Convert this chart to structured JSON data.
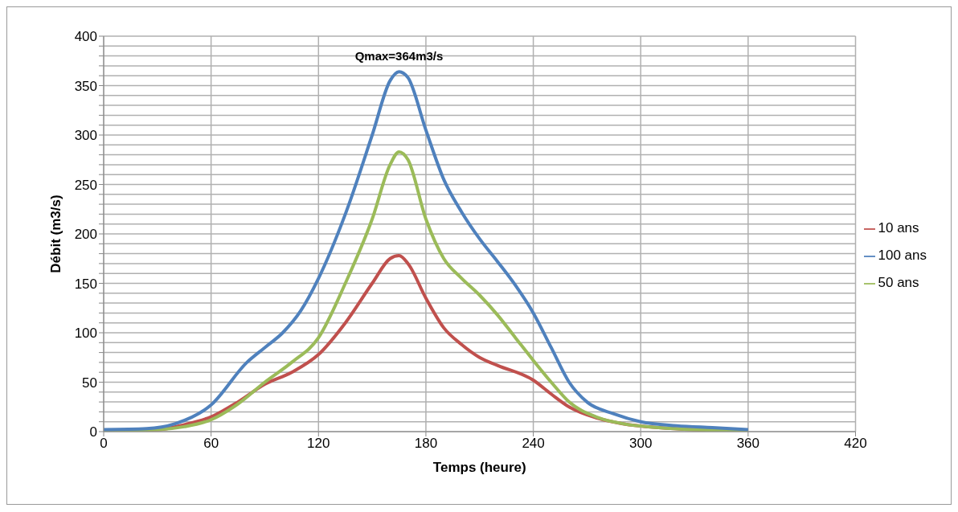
{
  "chart_data": {
    "type": "line",
    "xlabel": "Temps (heure)",
    "ylabel": "Débit (m3/s)",
    "xlim": [
      0,
      420
    ],
    "xticks": [
      0,
      60,
      120,
      180,
      240,
      300,
      360,
      420
    ],
    "ylim": [
      0,
      400
    ],
    "yticks": [
      0,
      {
        "value": 10,
        "label": null
      },
      {
        "value": 20,
        "label": null
      },
      {
        "value": 30,
        "label": null
      },
      {
        "value": 40,
        "label": null
      },
      50,
      {
        "value": 60,
        "label": null
      },
      {
        "value": 70,
        "label": null
      },
      {
        "value": 80,
        "label": null
      },
      {
        "value": 90,
        "label": null
      },
      100,
      {
        "value": 110,
        "label": null
      },
      {
        "value": 120,
        "label": null
      },
      {
        "value": 130,
        "label": null
      },
      {
        "value": 140,
        "label": null
      },
      150,
      {
        "value": 160,
        "label": null
      },
      {
        "value": 170,
        "label": null
      },
      {
        "value": 180,
        "label": null
      },
      {
        "value": 190,
        "label": null
      },
      200,
      {
        "value": 210,
        "label": null
      },
      {
        "value": 220,
        "label": null
      },
      {
        "value": 230,
        "label": null
      },
      {
        "value": 240,
        "label": null
      },
      250,
      {
        "value": 260,
        "label": null
      },
      {
        "value": 270,
        "label": null
      },
      {
        "value": 280,
        "label": null
      },
      {
        "value": 290,
        "label": null
      },
      300,
      {
        "value": 310,
        "label": null
      },
      {
        "value": 320,
        "label": null
      },
      {
        "value": 330,
        "label": null
      },
      {
        "value": 340,
        "label": null
      },
      350,
      {
        "value": 360,
        "label": null
      },
      {
        "value": 370,
        "label": null
      },
      {
        "value": 380,
        "label": null
      },
      {
        "value": 390,
        "label": null
      },
      400
    ],
    "grid": true,
    "legend": "right",
    "marker": "none",
    "line_style": "solid",
    "annotations": [
      {
        "text": "Qmax=364m3/s",
        "x": 165,
        "y": 364
      }
    ],
    "series": [
      {
        "name": "10 ans",
        "color": "#c0504d",
        "x": [
          0,
          30,
          45,
          60,
          75,
          90,
          105,
          120,
          135,
          150,
          160,
          165,
          170,
          180,
          190,
          200,
          210,
          220,
          240,
          250,
          260,
          275,
          290,
          310,
          330,
          360
        ],
        "values": [
          1,
          2,
          7,
          15,
          30,
          48,
          60,
          78,
          110,
          150,
          175,
          178,
          170,
          135,
          105,
          88,
          75,
          67,
          52,
          38,
          25,
          14,
          8,
          4,
          2,
          1
        ]
      },
      {
        "name": "50 ans",
        "color": "#9bbb59",
        "x": [
          0,
          30,
          45,
          60,
          75,
          90,
          105,
          120,
          135,
          150,
          160,
          165,
          170,
          180,
          190,
          200,
          210,
          220,
          230,
          240,
          250,
          260,
          275,
          290,
          310,
          330,
          360
        ],
        "values": [
          1,
          2,
          5,
          12,
          28,
          50,
          70,
          95,
          150,
          215,
          270,
          283,
          275,
          215,
          175,
          155,
          138,
          118,
          95,
          72,
          50,
          30,
          15,
          8,
          4,
          2,
          1
        ]
      },
      {
        "name": "100 ans",
        "color": "#4f81bd",
        "x": [
          0,
          24,
          40,
          60,
          80,
          90,
          100,
          110,
          120,
          135,
          150,
          160,
          165,
          170,
          180,
          190,
          200,
          210,
          220,
          230,
          240,
          250,
          260,
          270,
          285,
          300,
          320,
          340,
          360
        ],
        "values": [
          2,
          3,
          8,
          27,
          70,
          85,
          100,
          122,
          155,
          220,
          300,
          355,
          364,
          358,
          305,
          255,
          222,
          195,
          172,
          148,
          120,
          85,
          50,
          30,
          18,
          10,
          6,
          4,
          2
        ]
      }
    ]
  }
}
